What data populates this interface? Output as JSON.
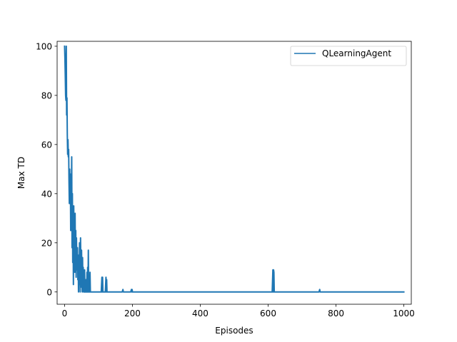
{
  "chart_data": {
    "type": "line",
    "xlabel": "Episodes",
    "ylabel": "Max TD",
    "xlim": [
      -22,
      1022
    ],
    "ylim": [
      -5,
      102
    ],
    "xticks": [
      0,
      200,
      400,
      600,
      800,
      1000
    ],
    "yticks": [
      0,
      20,
      40,
      60,
      80,
      100
    ],
    "grid": false,
    "legend_position": "top-right",
    "series": [
      {
        "name": "QLearningAgent",
        "color": "#1f77b4",
        "x": [
          0,
          1,
          2,
          3,
          4,
          5,
          6,
          7,
          8,
          9,
          10,
          11,
          12,
          13,
          14,
          15,
          16,
          17,
          18,
          19,
          20,
          21,
          22,
          23,
          24,
          25,
          26,
          27,
          28,
          29,
          30,
          31,
          32,
          33,
          34,
          35,
          36,
          37,
          38,
          39,
          40,
          41,
          42,
          43,
          44,
          45,
          46,
          47,
          48,
          49,
          50,
          51,
          52,
          53,
          54,
          55,
          56,
          57,
          58,
          59,
          60,
          61,
          62,
          63,
          64,
          65,
          66,
          67,
          68,
          69,
          70,
          71,
          72,
          73,
          74,
          75,
          76,
          77,
          78,
          79,
          80,
          108,
          110,
          111,
          112,
          113,
          120,
          122,
          123,
          124,
          125,
          170,
          172,
          173,
          174,
          195,
          197,
          198,
          199,
          200,
          612,
          614,
          615,
          616,
          617,
          618,
          750,
          752,
          753,
          754,
          1000
        ],
        "y": [
          100,
          95,
          88,
          80,
          78,
          100,
          72,
          79,
          64,
          56,
          62,
          55,
          58,
          45,
          36,
          50,
          40,
          48,
          25,
          46,
          38,
          55,
          18,
          40,
          12,
          30,
          3,
          35,
          15,
          28,
          8,
          32,
          10,
          25,
          6,
          22,
          12,
          9,
          18,
          5,
          14,
          0,
          15,
          3,
          20,
          7,
          0,
          22,
          10,
          2,
          17,
          6,
          0,
          14,
          1,
          10,
          0,
          6,
          0,
          9,
          0,
          0,
          0,
          5,
          0,
          0,
          8,
          0,
          10,
          0,
          17,
          0,
          5,
          0,
          0,
          8,
          0,
          0,
          0,
          0,
          0,
          0,
          6,
          0,
          6,
          0,
          0,
          6,
          0,
          5,
          0,
          0,
          1,
          0,
          0,
          0,
          1,
          0,
          1,
          0,
          0,
          9,
          0,
          9,
          8,
          0,
          0,
          1,
          0,
          0,
          0
        ]
      }
    ]
  }
}
